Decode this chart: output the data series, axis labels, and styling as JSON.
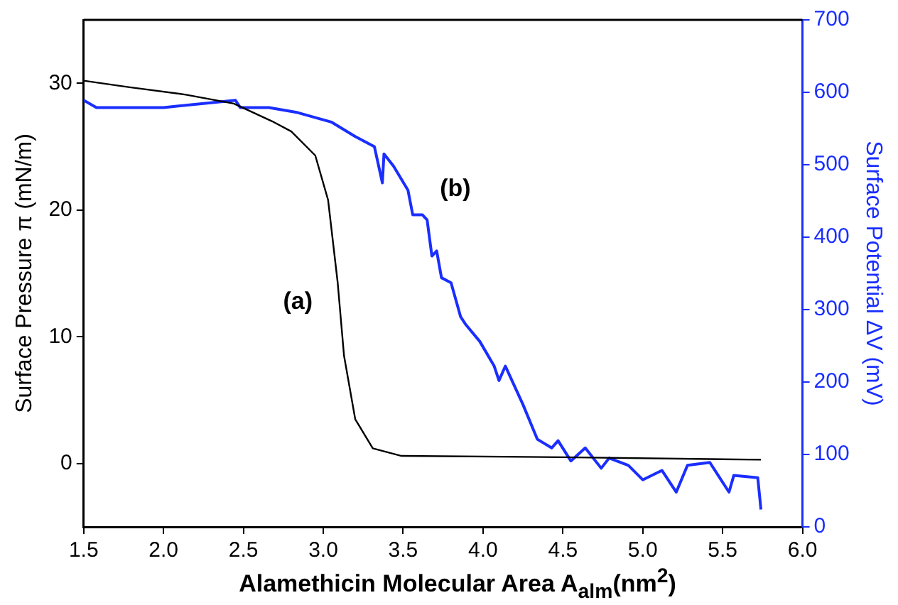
{
  "chart_data": {
    "type": "line",
    "xlabel": "Alamethicin Molecular Area A$_{alm}$(nm$^{2}$)",
    "ylabel": "Surface Pressure π (mN/m)",
    "y2label": "Surface Potential ΔV (mV)",
    "xlim": [
      1.5,
      6.0
    ],
    "xticks": [
      {
        "value": 1.5,
        "label": "1.5"
      },
      {
        "value": 2,
        "label": "2.0"
      },
      {
        "value": 2.5,
        "label": "2.5"
      },
      {
        "value": 3,
        "label": "3.0"
      },
      {
        "value": 3.5,
        "label": "3.5"
      },
      {
        "value": 4,
        "label": "4.0"
      },
      {
        "value": 4.5,
        "label": "4.5"
      },
      {
        "value": 5,
        "label": "5.0"
      },
      {
        "value": 5.5,
        "label": "5.5"
      },
      {
        "value": 6,
        "label": "6.0"
      }
    ],
    "ylim": [
      -5,
      35
    ],
    "yticks": [
      0,
      10,
      20,
      30
    ],
    "y2lim": [
      0,
      700
    ],
    "y2ticks": [
      0,
      100,
      200,
      300,
      400,
      500,
      600,
      700
    ],
    "grid": false,
    "legend": false,
    "marker": "none",
    "line_style": "solid",
    "series": [
      {
        "name": "(a)",
        "color": "#000000",
        "x": [
          1.5,
          1.78,
          2.14,
          2.44,
          2.68,
          2.8,
          2.95,
          3.03,
          3.09,
          3.13,
          3.2,
          3.31,
          3.49,
          4.5,
          5.74
        ],
        "values": [
          30.2,
          29.7,
          29.1,
          28.4,
          27.0,
          26.2,
          24.3,
          20.8,
          14.3,
          8.5,
          3.5,
          1.2,
          0.6,
          0.5,
          0.3
        ]
      },
      {
        "name": "(b)",
        "color": "#1a2eff",
        "axis": "y2",
        "x": [
          1.5,
          1.58,
          2.0,
          2.45,
          2.48,
          2.66,
          2.84,
          3.05,
          3.2,
          3.32,
          3.37,
          3.38,
          3.44,
          3.53,
          3.56,
          3.62,
          3.65,
          3.68,
          3.71,
          3.74,
          3.8,
          3.86,
          3.89,
          3.98,
          4.07,
          4.1,
          4.14,
          4.25,
          4.34,
          4.43,
          4.47,
          4.55,
          4.64,
          4.74,
          4.79,
          4.91,
          5.0,
          5.12,
          5.21,
          5.28,
          5.42,
          5.54,
          5.57,
          5.72,
          5.74
        ],
        "values": [
          589,
          579,
          579,
          589,
          579,
          579,
          572,
          559,
          539,
          525,
          475,
          515,
          498,
          465,
          431,
          431,
          424,
          374,
          381,
          344,
          337,
          290,
          280,
          256,
          222,
          202,
          222,
          169,
          121,
          109,
          119,
          91,
          109,
          81,
          95,
          85,
          65,
          78,
          48,
          85,
          89,
          48,
          71,
          68,
          24
        ]
      }
    ]
  }
}
